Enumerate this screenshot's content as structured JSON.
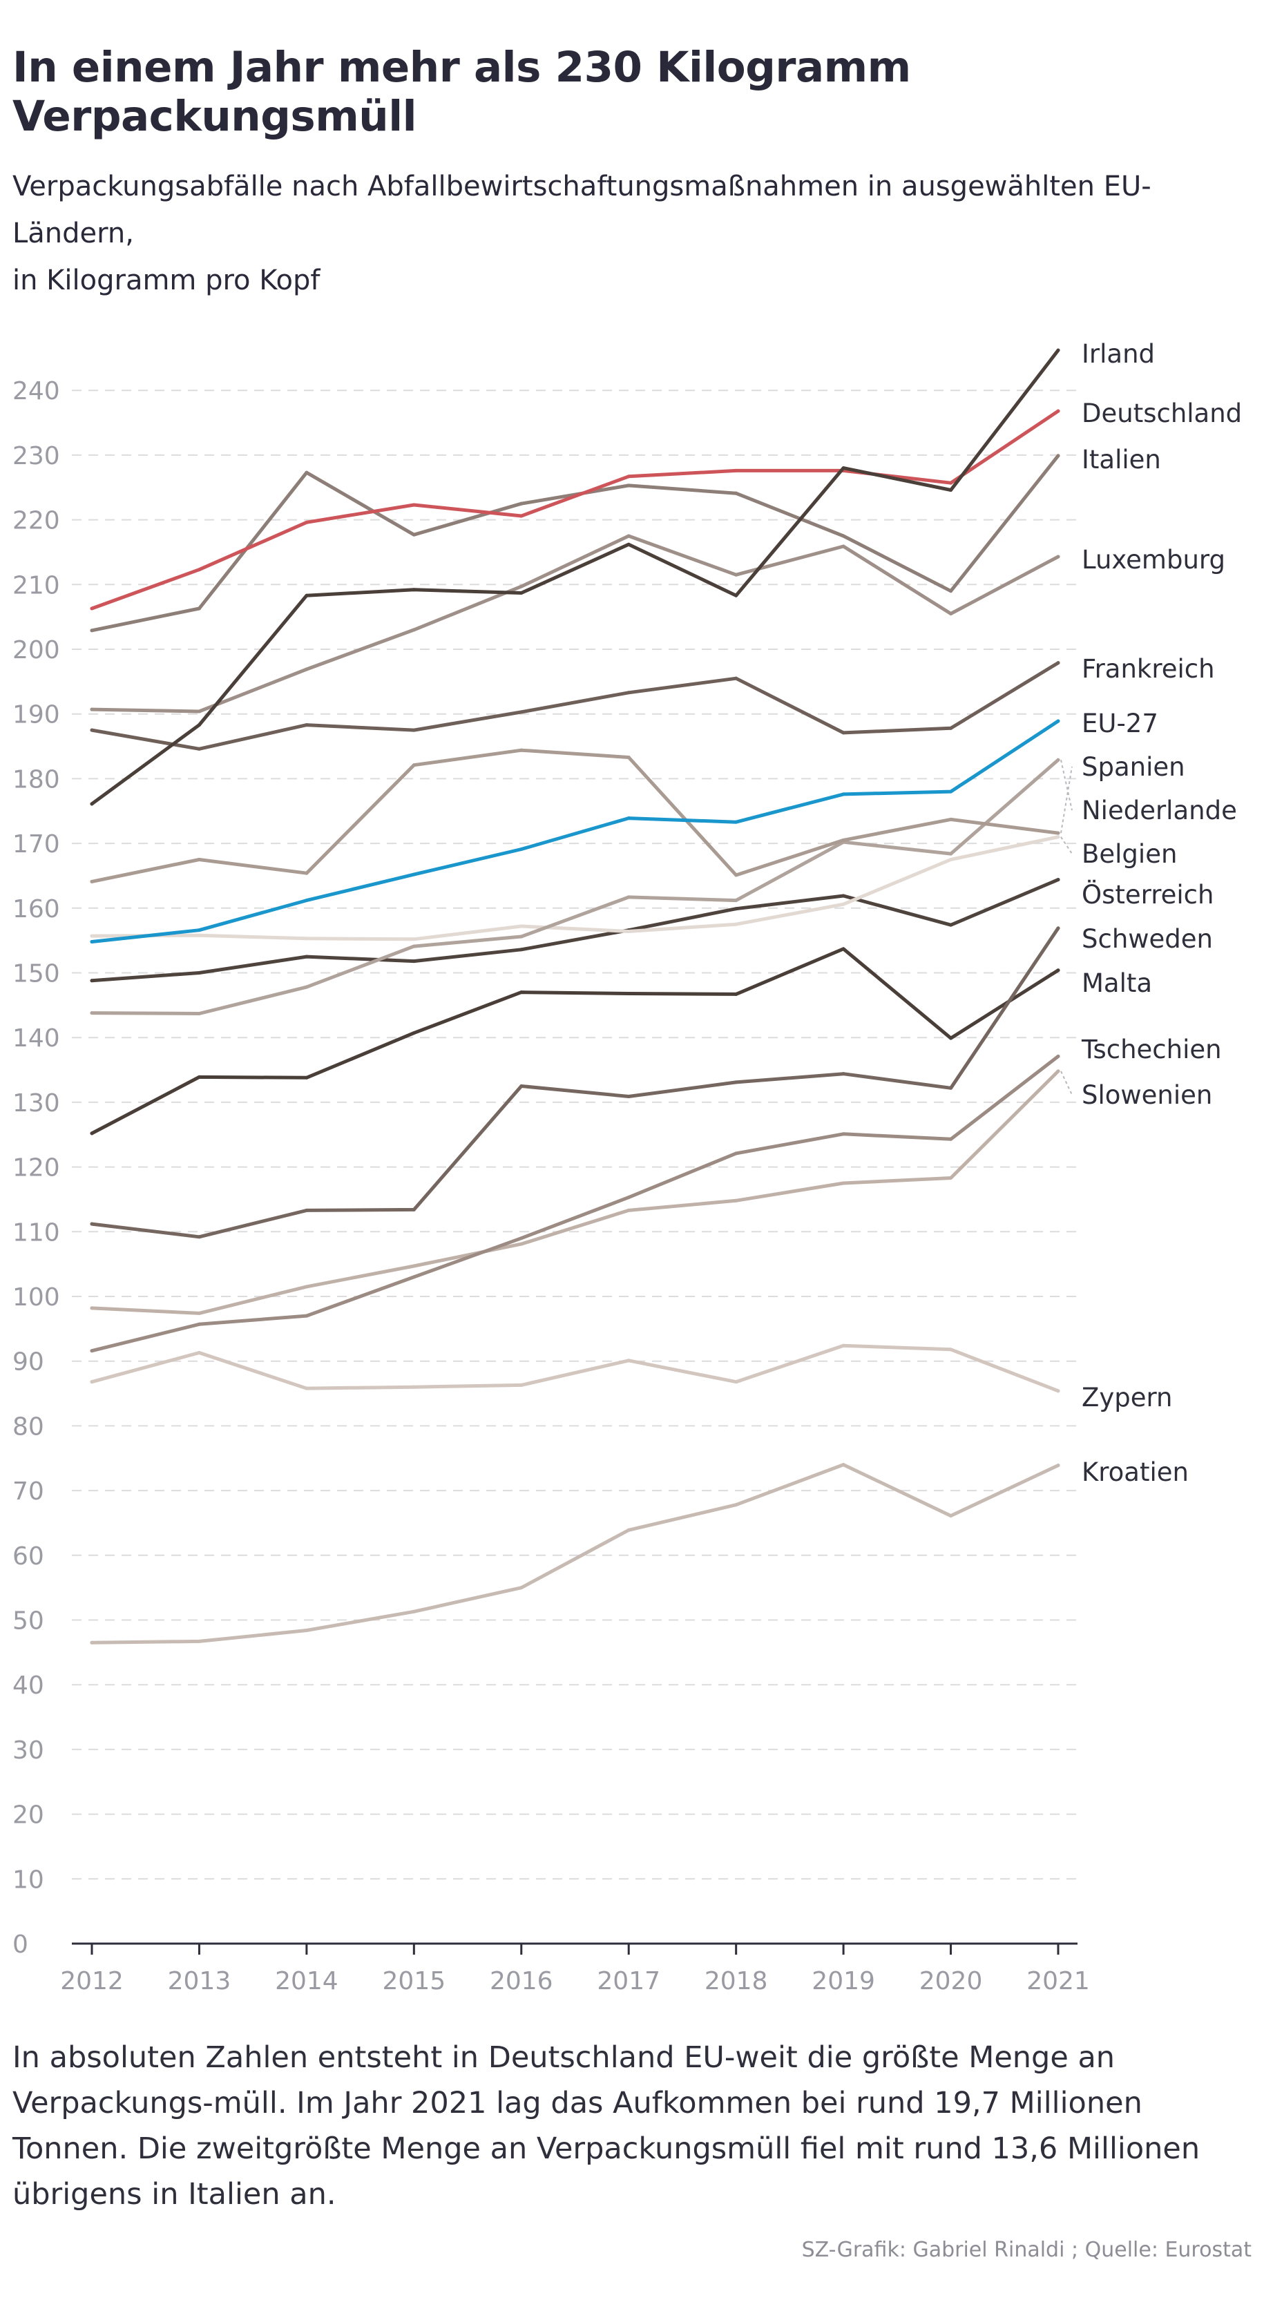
{
  "title": "In einem Jahr mehr als 230 Kilogramm Verpackungsmüll",
  "subtitle_line1": "Verpackungsabfälle nach Abfallbewirtschaftungsmaßnahmen in ausgewählten EU-Ländern,",
  "subtitle_line2": "in Kilogramm pro Kopf",
  "caption": "In absoluten Zahlen entsteht in Deutschland EU-weit die größte Menge an Verpackungs-müll. Im Jahr 2021 lag das Aufkommen bei rund 19,7 Millionen Tonnen. Die zweitgrößte Menge an Verpackungsmüll fiel mit rund 13,6 Millionen übrigens in Italien an.",
  "source": "SZ-Grafik: Gabriel Rinaldi ; Quelle: Eurostat",
  "chart_data": {
    "type": "line",
    "title": "",
    "xlabel": "",
    "ylabel": "",
    "grid": true,
    "x": [
      2012,
      2013,
      2014,
      2015,
      2016,
      2017,
      2018,
      2019,
      2020,
      2021
    ],
    "ylim": [
      0,
      240
    ],
    "yticks": [
      0,
      10,
      20,
      30,
      40,
      50,
      60,
      70,
      80,
      90,
      100,
      110,
      120,
      130,
      140,
      150,
      160,
      170,
      180,
      190,
      200,
      210,
      220,
      230,
      240
    ],
    "series": [
      {
        "name": "Kroatien",
        "color": "#c7bab2",
        "values": [
          46.5,
          46.7,
          48.4,
          51.3,
          55.0,
          63.9,
          67.8,
          74.0,
          66.1,
          73.9
        ]
      },
      {
        "name": "Zypern",
        "color": "#d2c6bf",
        "values": [
          86.8,
          91.3,
          85.8,
          86.0,
          86.3,
          90.1,
          86.8,
          92.4,
          91.8,
          85.4
        ]
      },
      {
        "name": "Slowenien",
        "color": "#c0b1a8",
        "values": [
          98.2,
          97.4,
          101.5,
          104.7,
          108.1,
          113.3,
          114.8,
          117.5,
          118.3,
          134.8
        ]
      },
      {
        "name": "Tschechien",
        "color": "#9b8b83",
        "values": [
          91.6,
          95.7,
          97.0,
          103.0,
          109.0,
          115.3,
          122.1,
          125.1,
          124.3,
          137.1
        ]
      },
      {
        "name": "Malta",
        "color": "#4a3e38",
        "values": [
          125.2,
          133.9,
          133.8,
          140.7,
          147.0,
          146.8,
          146.7,
          153.7,
          139.9,
          150.4
        ]
      },
      {
        "name": "Schweden",
        "color": "#75665f",
        "values": [
          111.2,
          109.2,
          113.3,
          113.4,
          132.5,
          130.9,
          133.1,
          134.4,
          132.2,
          156.9
        ]
      },
      {
        "name": "Österreich",
        "color": "#4f433d",
        "values": [
          148.8,
          150.0,
          152.5,
          151.8,
          153.6,
          156.6,
          159.9,
          161.9,
          157.4,
          164.4
        ]
      },
      {
        "name": "Belgien",
        "color": "#e2d9d3",
        "values": [
          155.7,
          155.8,
          155.3,
          155.2,
          157.2,
          156.4,
          157.5,
          160.6,
          167.5,
          171.0
        ]
      },
      {
        "name": "Niederlande",
        "color": "#b0a39c",
        "values": [
          143.8,
          143.7,
          147.8,
          154.1,
          155.6,
          161.7,
          161.2,
          170.2,
          168.4,
          182.9
        ]
      },
      {
        "name": "Spanien",
        "color": "#a99a92",
        "values": [
          164.1,
          167.5,
          165.4,
          182.1,
          184.4,
          183.3,
          165.1,
          170.5,
          173.7,
          171.6
        ]
      },
      {
        "name": "EU-27",
        "color": "#1996cc",
        "values": [
          154.8,
          156.6,
          161.2,
          165.2,
          169.1,
          173.9,
          173.3,
          177.6,
          178.0,
          188.9
        ]
      },
      {
        "name": "Frankreich",
        "color": "#6e5f58",
        "values": [
          187.5,
          184.6,
          188.3,
          187.5,
          190.3,
          193.3,
          195.5,
          187.1,
          187.8,
          197.9
        ]
      },
      {
        "name": "Luxemburg",
        "color": "#9e9089",
        "values": [
          190.7,
          190.4,
          196.9,
          203.0,
          209.7,
          217.5,
          211.5,
          215.9,
          205.5,
          214.3
        ]
      },
      {
        "name": "Italien",
        "color": "#8d7e77",
        "values": [
          202.9,
          206.3,
          227.3,
          217.7,
          222.5,
          225.3,
          224.1,
          217.5,
          209.0,
          229.9
        ]
      },
      {
        "name": "Deutschland",
        "color": "#cd5559",
        "values": [
          206.3,
          212.3,
          219.6,
          222.3,
          220.6,
          226.7,
          227.6,
          227.6,
          225.7,
          236.8
        ]
      },
      {
        "name": "Irland",
        "color": "#4b3f39",
        "values": [
          176.1,
          188.3,
          208.3,
          209.2,
          208.7,
          216.2,
          208.3,
          228.0,
          224.6,
          246.2
        ]
      }
    ],
    "labels": [
      {
        "name": "Irland",
        "text": "Irland"
      },
      {
        "name": "Deutschland",
        "text": "Deutschland"
      },
      {
        "name": "Italien",
        "text": "Italien"
      },
      {
        "name": "Luxemburg",
        "text": "Luxemburg"
      },
      {
        "name": "Frankreich",
        "text": "Frankreich"
      },
      {
        "name": "EU-27",
        "text": "EU-27"
      },
      {
        "name": "Spanien",
        "text": "Spanien"
      },
      {
        "name": "Niederlande",
        "text": "Niederlande"
      },
      {
        "name": "Belgien",
        "text": "Belgien"
      },
      {
        "name": "Österreich",
        "text": "Österreich"
      },
      {
        "name": "Schweden",
        "text": "Schweden"
      },
      {
        "name": "Malta",
        "text": "Malta"
      },
      {
        "name": "Tschechien",
        "text": "Tschechien"
      },
      {
        "name": "Slowenien",
        "text": "Slowenien"
      },
      {
        "name": "Zypern",
        "text": "Zypern"
      },
      {
        "name": "Kroatien",
        "text": "Kroatien"
      }
    ]
  }
}
